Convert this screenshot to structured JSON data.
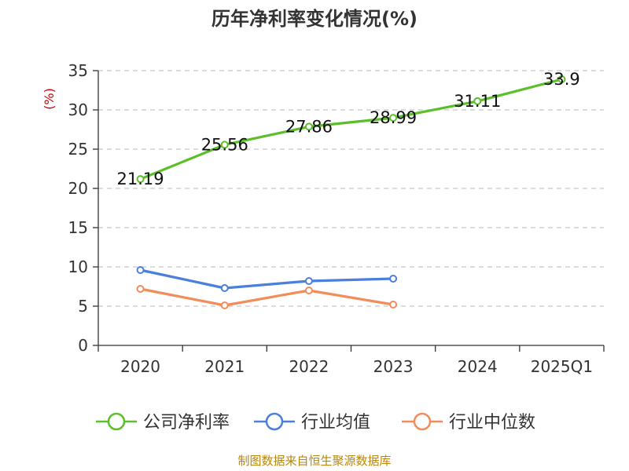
{
  "chart_data": {
    "type": "line",
    "title": "历年净利率变化情况(%)",
    "ylabel": "(%)",
    "categories": [
      "2020",
      "2021",
      "2022",
      "2023",
      "2024",
      "2025Q1"
    ],
    "ylim": [
      0,
      35
    ],
    "yticks": [
      "0",
      "5",
      "10",
      "15",
      "20",
      "25",
      "30",
      "35"
    ],
    "grid": true,
    "legend_position": "bottom",
    "series": [
      {
        "name": "公司净利率",
        "color": "#5cbf2a",
        "values": [
          21.19,
          25.56,
          27.86,
          28.99,
          31.11,
          33.9
        ],
        "labels": [
          "21.19",
          "25.56",
          "27.86",
          "28.99",
          "31.11",
          "33.9"
        ]
      },
      {
        "name": "行业均值",
        "color": "#4a7fdc",
        "values": [
          9.6,
          7.3,
          8.2,
          8.5,
          null,
          null
        ]
      },
      {
        "name": "行业中位数",
        "color": "#f28c5a",
        "values": [
          7.2,
          5.1,
          7.0,
          5.2,
          null,
          null
        ]
      }
    ],
    "unit_color": "#cc0000"
  },
  "footer": {
    "source": "制图数据来自恒生聚源数据库",
    "source_color": "#b8860b"
  }
}
